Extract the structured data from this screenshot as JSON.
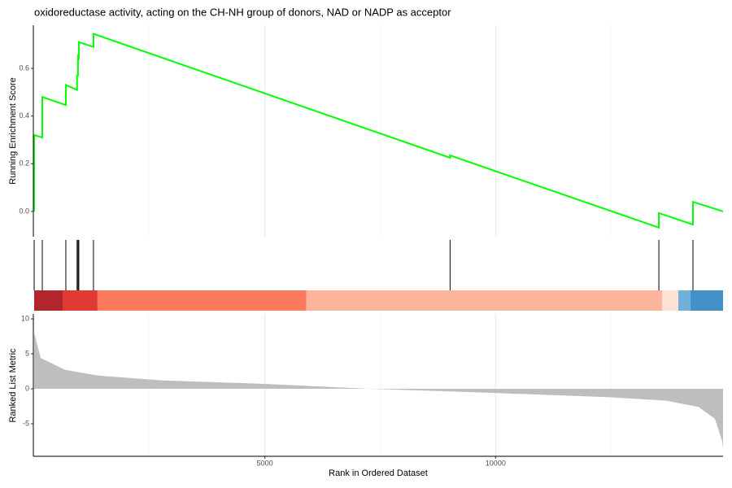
{
  "chart_data": [
    {
      "type": "line",
      "title": "oxidoreductase activity, acting on the CH-NH group of donors, NAD or NADP as acceptor",
      "ylabel": "Running Enrichment Score",
      "x": [
        0,
        0,
        176,
        176,
        687,
        687,
        930,
        930,
        950,
        950,
        968,
        968,
        1285,
        1285,
        9014,
        9014,
        13539,
        13539,
        14278,
        14278,
        14930
      ],
      "values": [
        0,
        0.32,
        0.31,
        0.48,
        0.446,
        0.53,
        0.51,
        0.57,
        0.57,
        0.65,
        0.645,
        0.71,
        0.69,
        0.745,
        0.225,
        0.235,
        -0.068,
        -0.007,
        -0.055,
        0.04,
        0.0
      ],
      "color": "#00ff00",
      "xlim": [
        0,
        14930
      ],
      "ylim": [
        -0.106,
        0.781
      ],
      "yticks": [
        {
          "value": 0,
          "label": "0.0"
        },
        0.2,
        0.4,
        0.6
      ],
      "minor_xticks": [
        2500,
        7500,
        12500
      ],
      "xticks": [
        5000,
        10000
      ],
      "grid": true
    },
    {
      "type": "rug",
      "hits": [
        0,
        176,
        687,
        930,
        950,
        968,
        1285,
        9014,
        13539,
        14278
      ],
      "color": "#000000",
      "xlim": [
        0,
        14930
      ]
    },
    {
      "type": "band",
      "bands": [
        {
          "start": 0,
          "end": 617,
          "color": "#b2252c"
        },
        {
          "start": 617,
          "end": 1373,
          "color": "#e03a32"
        },
        {
          "start": 1373,
          "end": 5898,
          "color": "#fb7a5e"
        },
        {
          "start": 5898,
          "end": 13609,
          "color": "#fcb49b"
        },
        {
          "start": 13609,
          "end": 13961,
          "color": "#fde1d5"
        },
        {
          "start": 13961,
          "end": 14225,
          "color": "#71b0d9"
        },
        {
          "start": 14225,
          "end": 14930,
          "color": "#4391c6"
        }
      ],
      "xlim": [
        0,
        14930
      ]
    },
    {
      "type": "area",
      "ylabel": "Ranked List Metric",
      "xlabel": "Rank in Ordered Dataset",
      "x": [
        0,
        141,
        669,
        1373,
        2782,
        4982,
        7271,
        9982,
        12465,
        13697,
        14401,
        14754,
        14912,
        14930
      ],
      "values": [
        8,
        4.4,
        2.7,
        1.9,
        1.2,
        0.7,
        0,
        -0.6,
        -1.2,
        -1.7,
        -2.6,
        -4.3,
        -7.5,
        -8.6
      ],
      "color": "#bebebe",
      "xlim": [
        0,
        14930
      ],
      "ylim": [
        -9.65,
        10.7
      ],
      "yticks": [
        -5,
        0,
        5,
        10
      ],
      "xticks": [
        5000,
        10000
      ],
      "minor_xticks": [
        2500,
        7500,
        12500
      ],
      "grid": true
    }
  ]
}
